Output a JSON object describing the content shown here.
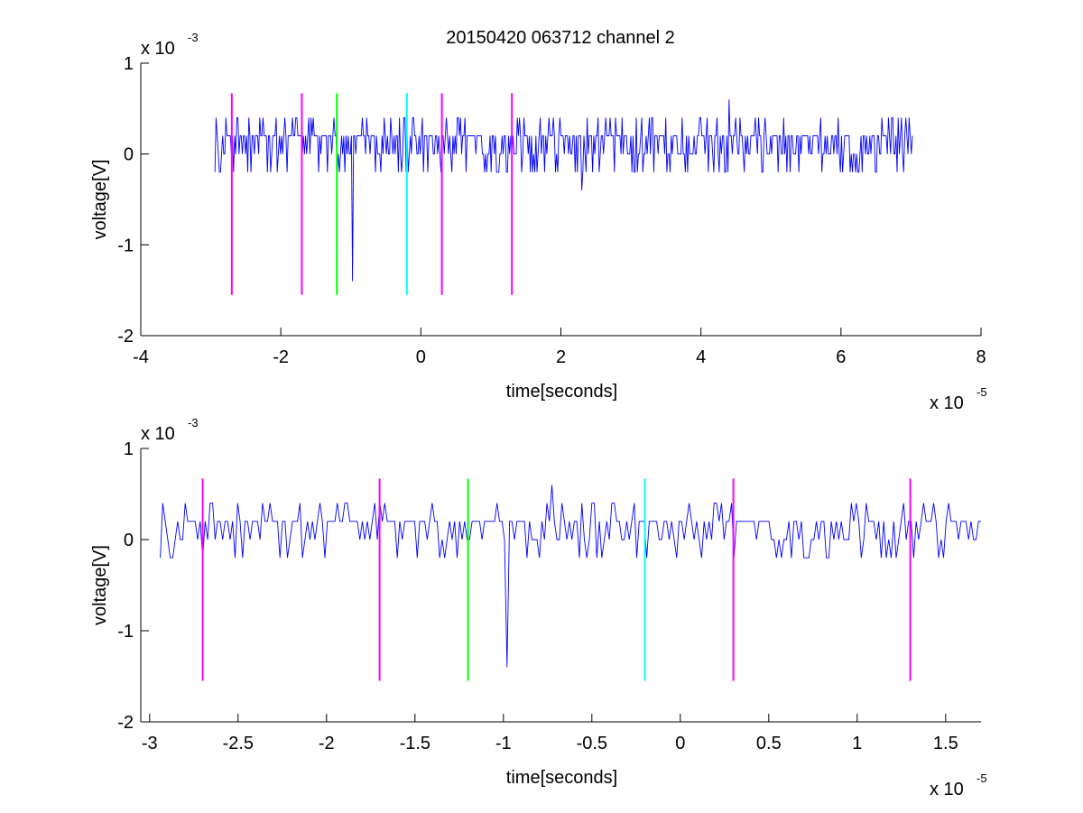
{
  "figure_title": "20150420 063712 channel 2",
  "colors": {
    "signal": "#0000ff",
    "magenta": "#ff00ff",
    "green": "#00ff00",
    "cyan": "#00ffff",
    "axis": "#000000"
  },
  "chart_data": [
    {
      "type": "line",
      "title": "20150420 063712 channel 2",
      "xlabel": "time[seconds]",
      "ylabel": "voltage[V]",
      "x_exponent_label": "x 10",
      "x_exponent": "-5",
      "y_exponent_label": "x 10",
      "y_exponent": "-3",
      "xlim": [
        -4,
        8
      ],
      "ylim": [
        -2,
        1
      ],
      "x_ticks": [
        -4,
        -2,
        0,
        2,
        4,
        6,
        8
      ],
      "x_tick_labels": [
        "-4",
        "-2",
        "0",
        "2",
        "4",
        "6",
        "8"
      ],
      "y_ticks": [
        -2,
        -1,
        0,
        1
      ],
      "y_tick_labels": [
        "-2",
        "-1",
        "0",
        "1"
      ],
      "grid": false,
      "signal": {
        "x_range": [
          -2.94,
          7.02
        ],
        "baseline": 0.06,
        "min_point": {
          "x": -0.98,
          "y": -1.4
        },
        "secondary_dip": {
          "x": 2.3,
          "y": -0.4
        },
        "max_point": {
          "x": 4.4,
          "y": 0.6
        }
      },
      "markers": [
        {
          "x": -2.7,
          "y_top": 0.67,
          "y_bottom": -1.55,
          "color": "magenta"
        },
        {
          "x": -1.7,
          "y_top": 0.67,
          "y_bottom": -1.55,
          "color": "magenta"
        },
        {
          "x": -1.2,
          "y_top": 0.67,
          "y_bottom": -1.55,
          "color": "green"
        },
        {
          "x": -0.2,
          "y_top": 0.67,
          "y_bottom": -1.55,
          "color": "cyan"
        },
        {
          "x": 0.3,
          "y_top": 0.67,
          "y_bottom": -1.55,
          "color": "magenta"
        },
        {
          "x": 1.3,
          "y_top": 0.67,
          "y_bottom": -1.55,
          "color": "magenta"
        }
      ]
    },
    {
      "type": "line",
      "title": "",
      "xlabel": "time[seconds]",
      "ylabel": "voltage[V]",
      "x_exponent_label": "x 10",
      "x_exponent": "-5",
      "y_exponent_label": "x 10",
      "y_exponent": "-3",
      "xlim": [
        -3.05,
        1.7
      ],
      "ylim": [
        -2,
        1
      ],
      "x_ticks": [
        -3,
        -2.5,
        -2,
        -1.5,
        -1,
        -0.5,
        0,
        0.5,
        1,
        1.5
      ],
      "x_tick_labels": [
        "-3",
        "-2.5",
        "-2",
        "-1.5",
        "-1",
        "-0.5",
        "0",
        "0.5",
        "1",
        "1.5"
      ],
      "y_ticks": [
        -2,
        -1,
        0,
        1
      ],
      "y_tick_labels": [
        "-2",
        "-1",
        "0",
        "1"
      ],
      "grid": false,
      "signal": {
        "x_range": [
          -2.94,
          1.7
        ],
        "baseline": 0.06,
        "min_point": {
          "x": -0.98,
          "y": -1.4
        },
        "max_point": {
          "x": -0.72,
          "y": 0.6
        }
      },
      "markers": [
        {
          "x": -2.7,
          "y_top": 0.67,
          "y_bottom": -1.55,
          "color": "magenta"
        },
        {
          "x": -1.7,
          "y_top": 0.67,
          "y_bottom": -1.55,
          "color": "magenta"
        },
        {
          "x": -1.2,
          "y_top": 0.67,
          "y_bottom": -1.55,
          "color": "green"
        },
        {
          "x": -0.2,
          "y_top": 0.67,
          "y_bottom": -1.55,
          "color": "cyan"
        },
        {
          "x": 0.3,
          "y_top": 0.67,
          "y_bottom": -1.55,
          "color": "magenta"
        },
        {
          "x": 1.3,
          "y_top": 0.67,
          "y_bottom": -1.55,
          "color": "magenta"
        }
      ]
    }
  ]
}
